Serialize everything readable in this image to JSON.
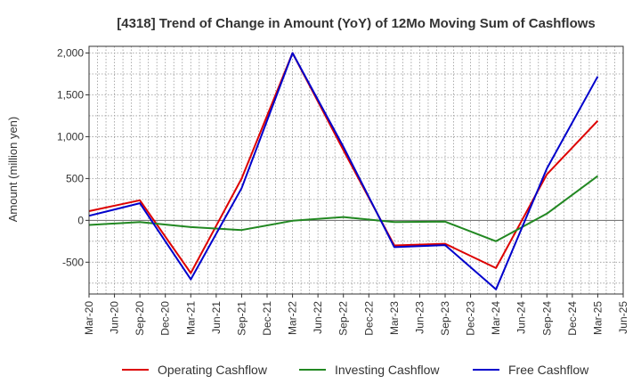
{
  "chart_data": {
    "type": "line",
    "title": "[4318]  Trend of Change in Amount (YoY) of 12Mo Moving Sum of Cashflows",
    "xlabel": "",
    "ylabel": "Amount (million yen)",
    "ylim": [
      -880,
      2080
    ],
    "yticks": [
      2000,
      1500,
      1000,
      500,
      0,
      -500
    ],
    "ytick_labels": [
      "2,000",
      "1,500",
      "1,000",
      "500",
      "0",
      "-500"
    ],
    "x_labels": [
      "Mar-20",
      "Jun-20",
      "Sep-20",
      "Dec-20",
      "Mar-21",
      "Jun-21",
      "Sep-21",
      "Dec-21",
      "Mar-22",
      "Jun-22",
      "Sep-22",
      "Dec-22",
      "Mar-23",
      "Jun-23",
      "Sep-23",
      "Dec-23",
      "Mar-24",
      "Jun-24",
      "Sep-24",
      "Dec-24",
      "Mar-25",
      "Jun-25"
    ],
    "grid": true,
    "legend_position": "bottom",
    "series": [
      {
        "name": "Operating Cashflow",
        "color": "#dd0000",
        "points": [
          [
            0,
            110
          ],
          [
            2,
            240
          ],
          [
            4,
            -630
          ],
          [
            6,
            500
          ],
          [
            8,
            2000
          ],
          [
            10,
            840
          ],
          [
            12,
            -300
          ],
          [
            14,
            -280
          ],
          [
            16,
            -570
          ],
          [
            18,
            550
          ],
          [
            20,
            1190
          ]
        ]
      },
      {
        "name": "Investing Cashflow",
        "color": "#228822",
        "points": [
          [
            0,
            -55
          ],
          [
            2,
            -20
          ],
          [
            4,
            -80
          ],
          [
            6,
            -115
          ],
          [
            8,
            -5
          ],
          [
            10,
            40
          ],
          [
            12,
            -20
          ],
          [
            14,
            -15
          ],
          [
            16,
            -250
          ],
          [
            18,
            80
          ],
          [
            20,
            530
          ]
        ]
      },
      {
        "name": "Free Cashflow",
        "color": "#0000cc",
        "points": [
          [
            0,
            55
          ],
          [
            2,
            205
          ],
          [
            4,
            -705
          ],
          [
            6,
            385
          ],
          [
            8,
            2000
          ],
          [
            10,
            880
          ],
          [
            12,
            -320
          ],
          [
            14,
            -295
          ],
          [
            16,
            -825
          ],
          [
            18,
            620
          ],
          [
            20,
            1720
          ]
        ]
      }
    ]
  }
}
